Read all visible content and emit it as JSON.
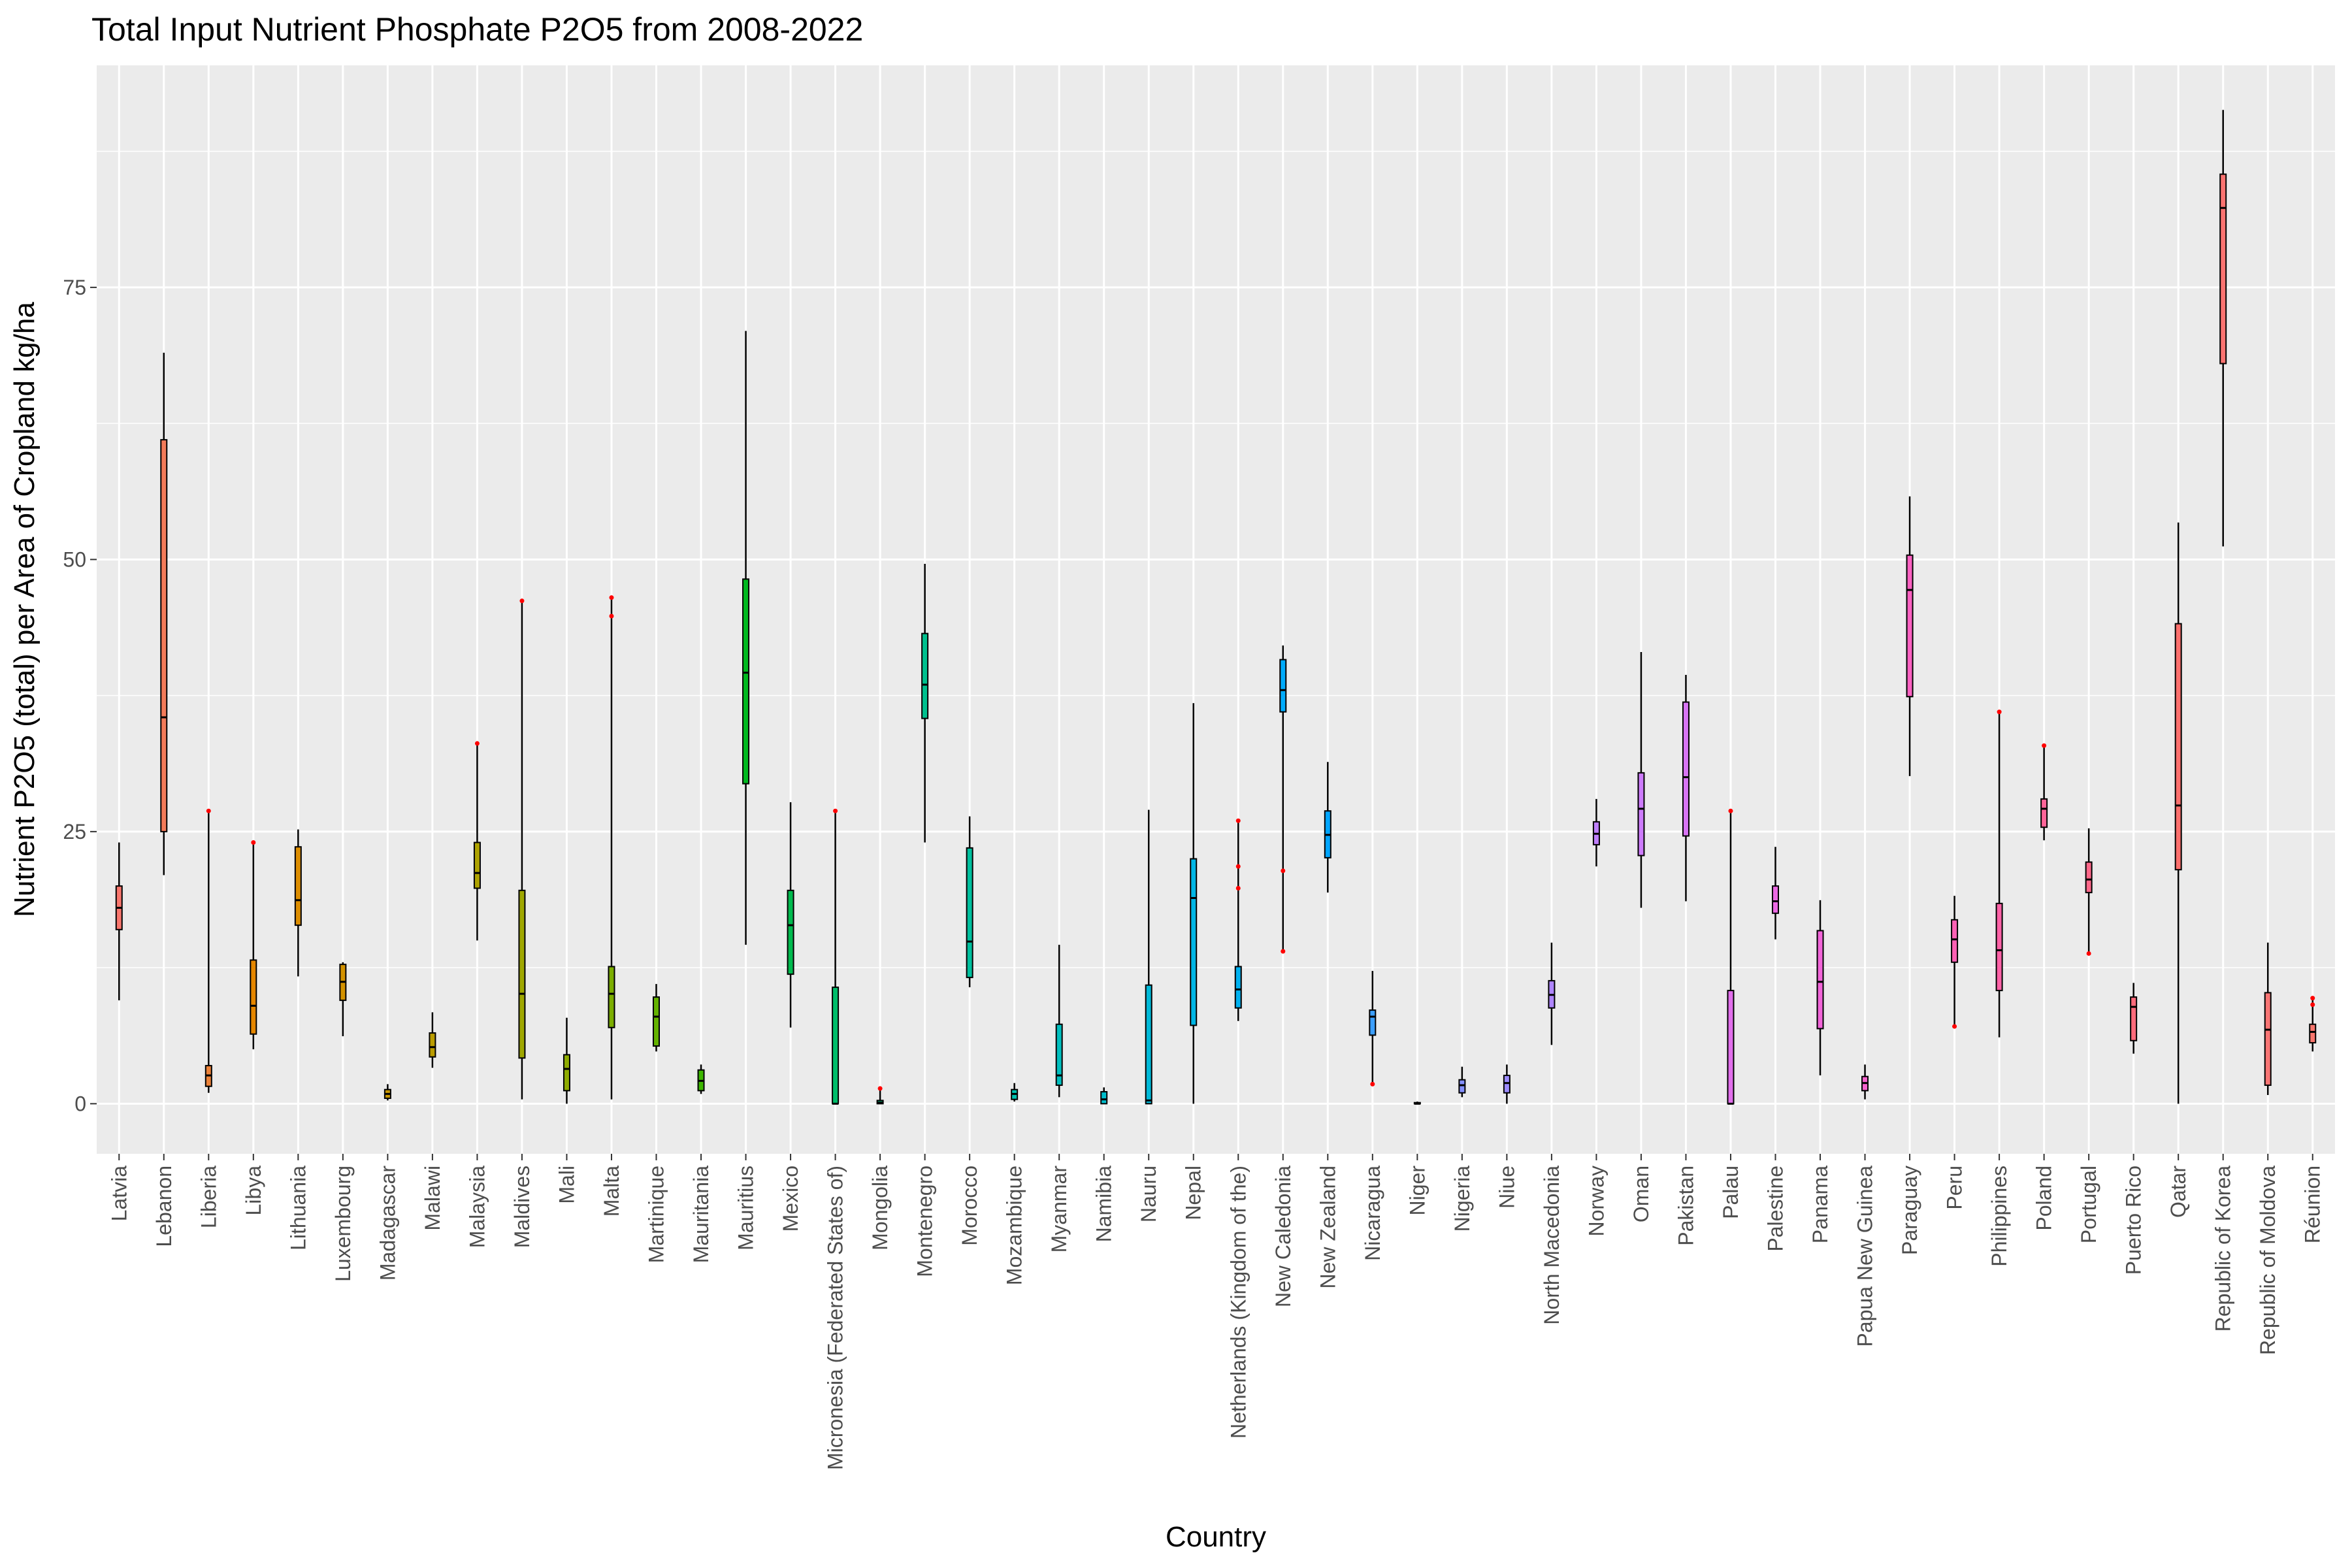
{
  "chart_data": {
    "type": "box",
    "title": "Total Input Nutrient Phosphate P2O5 from 2008-2022",
    "xlabel": "Country",
    "ylabel": "Nutrient P2O5 (total) per Area of Cropland kg/ha",
    "ylim": [
      -4.6,
      95.4
    ],
    "yticks": [
      0,
      25,
      50,
      75
    ],
    "grid": true,
    "legend": "none",
    "outlier_color": "#ff0000",
    "categories": [
      "Latvia",
      "Lebanon",
      "Liberia",
      "Libya",
      "Lithuania",
      "Luxembourg",
      "Madagascar",
      "Malawi",
      "Malaysia",
      "Maldives",
      "Mali",
      "Malta",
      "Martinique",
      "Mauritania",
      "Mauritius",
      "Mexico",
      "Micronesia (Federated States of)",
      "Mongolia",
      "Montenegro",
      "Morocco",
      "Mozambique",
      "Myanmar",
      "Namibia",
      "Nauru",
      "Nepal",
      "Netherlands (Kingdom of the)",
      "New Caledonia",
      "New Zealand",
      "Nicaragua",
      "Niger",
      "Nigeria",
      "Niue",
      "North Macedonia",
      "Norway",
      "Oman",
      "Pakistan",
      "Palau",
      "Palestine",
      "Panama",
      "Papua New Guinea",
      "Paraguay",
      "Peru",
      "Philippines",
      "Poland",
      "Portugal",
      "Puerto Rico",
      "Qatar",
      "Republic of Korea",
      "Republic of Moldova",
      "Réunion"
    ],
    "boxes": [
      {
        "min": 9.5,
        "q1": 16,
        "median": 18,
        "q3": 20,
        "max": 24,
        "outliers": [],
        "color": "#F8766D"
      },
      {
        "min": 21,
        "q1": 25,
        "median": 35.5,
        "q3": 61,
        "max": 69,
        "outliers": [],
        "color": "#F37B59"
      },
      {
        "min": 1,
        "q1": 1.6,
        "median": 2.6,
        "q3": 3.5,
        "max": 26.9,
        "outliers": [
          26.9
        ],
        "color": "#EC8239"
      },
      {
        "min": 5,
        "q1": 6.4,
        "median": 9,
        "q3": 13.2,
        "max": 24,
        "outliers": [
          24
        ],
        "color": "#E58700"
      },
      {
        "min": 11.7,
        "q1": 16.4,
        "median": 18.7,
        "q3": 23.6,
        "max": 25.2,
        "outliers": [],
        "color": "#DC8D00"
      },
      {
        "min": 6.2,
        "q1": 9.5,
        "median": 11.2,
        "q3": 12.8,
        "max": 13,
        "outliers": [],
        "color": "#D39200"
      },
      {
        "min": 0.3,
        "q1": 0.5,
        "median": 0.9,
        "q3": 1.3,
        "max": 1.8,
        "outliers": [],
        "color": "#C99800"
      },
      {
        "min": 3.3,
        "q1": 4.3,
        "median": 5.2,
        "q3": 6.5,
        "max": 8.4,
        "outliers": [],
        "color": "#BB9D00"
      },
      {
        "min": 15,
        "q1": 19.8,
        "median": 21.2,
        "q3": 24,
        "max": 33.1,
        "outliers": [
          33.1
        ],
        "color": "#AEA200"
      },
      {
        "min": 0.4,
        "q1": 4.2,
        "median": 10.1,
        "q3": 19.6,
        "max": 46.2,
        "outliers": [
          46.2
        ],
        "color": "#9FA700"
      },
      {
        "min": 0,
        "q1": 1.2,
        "median": 3.2,
        "q3": 4.5,
        "max": 7.9,
        "outliers": [],
        "color": "#8EAB00"
      },
      {
        "min": 0.4,
        "q1": 7,
        "median": 10.1,
        "q3": 12.6,
        "max": 46.5,
        "outliers": [
          44.8,
          46.5
        ],
        "color": "#7CAE00"
      },
      {
        "min": 4.8,
        "q1": 5.3,
        "median": 8,
        "q3": 9.8,
        "max": 11,
        "outliers": [],
        "color": "#64B200"
      },
      {
        "min": 0.9,
        "q1": 1.2,
        "median": 2.1,
        "q3": 3.1,
        "max": 3.6,
        "outliers": [],
        "color": "#3DB600"
      },
      {
        "min": 14.6,
        "q1": 29.4,
        "median": 39.6,
        "q3": 48.2,
        "max": 71,
        "outliers": [],
        "color": "#00B81F"
      },
      {
        "min": 7,
        "q1": 11.9,
        "median": 16.4,
        "q3": 19.6,
        "max": 27.7,
        "outliers": [],
        "color": "#00BB4E"
      },
      {
        "min": 0,
        "q1": 0,
        "median": 0,
        "q3": 10.7,
        "max": 26.9,
        "outliers": [
          26.9
        ],
        "color": "#00BD6A"
      },
      {
        "min": 0,
        "q1": 0,
        "median": 0.1,
        "q3": 0.3,
        "max": 1.4,
        "outliers": [
          1.4
        ],
        "color": "#00BF7D"
      },
      {
        "min": 24,
        "q1": 35.4,
        "median": 38.5,
        "q3": 43.2,
        "max": 49.6,
        "outliers": [],
        "color": "#00C08E"
      },
      {
        "min": 10.7,
        "q1": 11.6,
        "median": 14.9,
        "q3": 23.5,
        "max": 26.4,
        "outliers": [],
        "color": "#00C19F"
      },
      {
        "min": 0.2,
        "q1": 0.4,
        "median": 0.9,
        "q3": 1.3,
        "max": 1.9,
        "outliers": [],
        "color": "#00C1AF"
      },
      {
        "min": 0.6,
        "q1": 1.7,
        "median": 2.6,
        "q3": 7.3,
        "max": 14.6,
        "outliers": [],
        "color": "#00BFBE"
      },
      {
        "min": 0,
        "q1": 0,
        "median": 0.4,
        "q3": 1.1,
        "max": 1.5,
        "outliers": [],
        "color": "#00BDCC"
      },
      {
        "min": 0,
        "q1": 0,
        "median": 0.3,
        "q3": 10.9,
        "max": 27,
        "outliers": [],
        "color": "#00BAD9"
      },
      {
        "min": 0,
        "q1": 7.2,
        "median": 18.9,
        "q3": 22.5,
        "max": 36.8,
        "outliers": [],
        "color": "#00B6E5"
      },
      {
        "min": 7.6,
        "q1": 8.8,
        "median": 10.5,
        "q3": 12.6,
        "max": 26,
        "outliers": [
          19.8,
          21.8,
          26
        ],
        "color": "#00B1F0"
      },
      {
        "min": 14,
        "q1": 36,
        "median": 38,
        "q3": 40.8,
        "max": 42.1,
        "outliers": [
          14,
          21.4
        ],
        "color": "#00ABFB"
      },
      {
        "min": 19.4,
        "q1": 22.6,
        "median": 24.7,
        "q3": 26.9,
        "max": 31.4,
        "outliers": [],
        "color": "#00A5FF"
      },
      {
        "min": 1.8,
        "q1": 6.3,
        "median": 8,
        "q3": 8.6,
        "max": 12.2,
        "outliers": [
          1.8
        ],
        "color": "#3C9FFF"
      },
      {
        "min": 0,
        "q1": 0,
        "median": 0,
        "q3": 0.1,
        "max": 0.2,
        "outliers": [],
        "color": "#6798FF"
      },
      {
        "min": 0.6,
        "q1": 1,
        "median": 1.7,
        "q3": 2.2,
        "max": 3.4,
        "outliers": [],
        "color": "#8590FF"
      },
      {
        "min": 0,
        "q1": 1,
        "median": 1.9,
        "q3": 2.6,
        "max": 3.6,
        "outliers": [],
        "color": "#9C8BFF"
      },
      {
        "min": 5.4,
        "q1": 8.8,
        "median": 10,
        "q3": 11.3,
        "max": 14.8,
        "outliers": [],
        "color": "#AF85FF"
      },
      {
        "min": 21.8,
        "q1": 23.8,
        "median": 24.8,
        "q3": 25.9,
        "max": 28,
        "outliers": [],
        "color": "#BF80FF"
      },
      {
        "min": 18,
        "q1": 22.8,
        "median": 27.1,
        "q3": 30.4,
        "max": 41.5,
        "outliers": [],
        "color": "#CD7BFB"
      },
      {
        "min": 18.6,
        "q1": 24.6,
        "median": 30,
        "q3": 36.9,
        "max": 39.4,
        "outliers": [],
        "color": "#D875F4"
      },
      {
        "min": 0,
        "q1": 0,
        "median": 0,
        "q3": 10.4,
        "max": 26.9,
        "outliers": [
          26.9
        ],
        "color": "#E26FEC"
      },
      {
        "min": 15.1,
        "q1": 17.5,
        "median": 18.6,
        "q3": 20,
        "max": 23.6,
        "outliers": [],
        "color": "#EB69E3"
      },
      {
        "min": 2.6,
        "q1": 6.9,
        "median": 11.2,
        "q3": 15.9,
        "max": 18.7,
        "outliers": [],
        "color": "#F265D9"
      },
      {
        "min": 0.4,
        "q1": 1.2,
        "median": 1.9,
        "q3": 2.5,
        "max": 3.6,
        "outliers": [],
        "color": "#F763CE"
      },
      {
        "min": 30.1,
        "q1": 37.4,
        "median": 47.2,
        "q3": 50.4,
        "max": 55.8,
        "outliers": [],
        "color": "#FB61C1"
      },
      {
        "min": 7.1,
        "q1": 13,
        "median": 15.1,
        "q3": 16.9,
        "max": 19.1,
        "outliers": [
          7.1
        ],
        "color": "#FE61B4"
      },
      {
        "min": 6.1,
        "q1": 10.4,
        "median": 14.1,
        "q3": 18.4,
        "max": 36,
        "outliers": [
          36
        ],
        "color": "#FF62A7"
      },
      {
        "min": 24.2,
        "q1": 25.4,
        "median": 27.1,
        "q3": 28,
        "max": 32.9,
        "outliers": [
          32.9
        ],
        "color": "#FF6599"
      },
      {
        "min": 13.8,
        "q1": 19.4,
        "median": 20.6,
        "q3": 22.2,
        "max": 25.3,
        "outliers": [
          13.8
        ],
        "color": "#FF688A"
      },
      {
        "min": 4.6,
        "q1": 5.8,
        "median": 8.9,
        "q3": 9.8,
        "max": 11.1,
        "outliers": [],
        "color": "#FF6B7B"
      },
      {
        "min": 0,
        "q1": 21.5,
        "median": 27.4,
        "q3": 44.1,
        "max": 53.4,
        "outliers": [],
        "color": "#FD6F6C"
      },
      {
        "min": 51.2,
        "q1": 68,
        "median": 82.3,
        "q3": 85.4,
        "max": 91.3,
        "outliers": [],
        "color": "#FA7370"
      },
      {
        "min": 0.8,
        "q1": 1.7,
        "median": 6.8,
        "q3": 10.2,
        "max": 14.8,
        "outliers": [],
        "color": "#F87574"
      },
      {
        "min": 4.8,
        "q1": 5.6,
        "median": 6.6,
        "q3": 7.3,
        "max": 9.7,
        "outliers": [
          9.1,
          9.7
        ],
        "color": "#F8766D"
      }
    ]
  }
}
